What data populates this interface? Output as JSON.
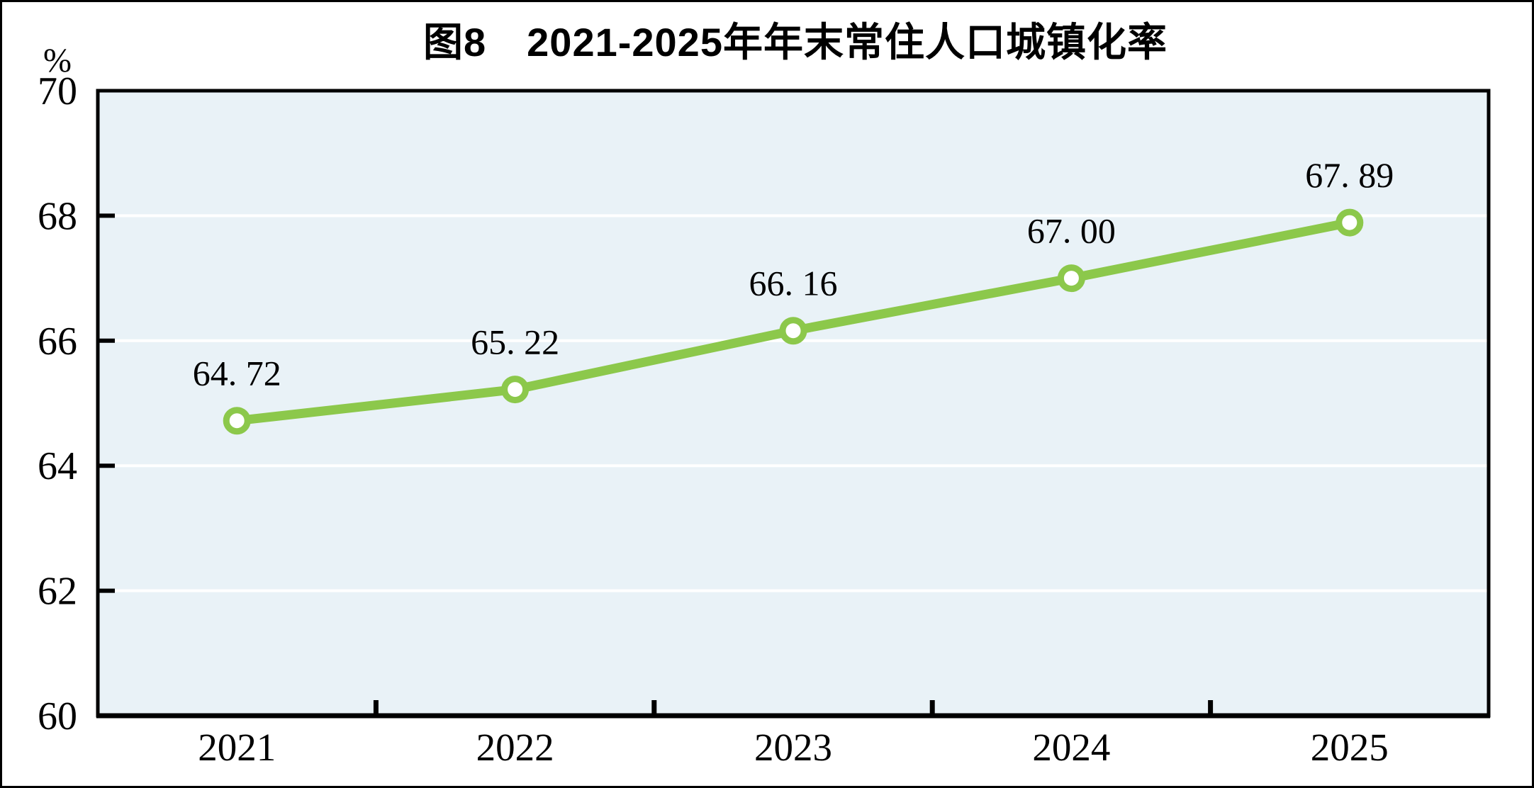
{
  "page": {
    "frame_color": "#000000",
    "background": "#ffffff"
  },
  "chart_data": {
    "type": "line",
    "title": "图8　2021-2025年年末常住人口城镇化率",
    "unit_label": "%",
    "categories": [
      "2021",
      "2022",
      "2023",
      "2024",
      "2025"
    ],
    "series": [
      {
        "name": "年末常住人口城镇化率",
        "values": [
          64.72,
          65.22,
          66.16,
          67.0,
          67.89
        ]
      }
    ],
    "point_labels": [
      "64. 72",
      "65. 22",
      "66. 16",
      "67. 00",
      "67. 89"
    ],
    "ylim": [
      60,
      70
    ],
    "yticks": [
      60,
      62,
      64,
      66,
      68,
      70
    ],
    "gridline_values": [
      62,
      64,
      66,
      68
    ],
    "grid": true,
    "legend_position": "none",
    "colors": {
      "line": "#8CC84B",
      "marker_fill": "#FFFFFF",
      "marker_stroke": "#8CC84B",
      "plot_background": "#E9F2F7",
      "gridline": "#FFFFFF",
      "axis": "#000000",
      "text": "#000000"
    }
  }
}
